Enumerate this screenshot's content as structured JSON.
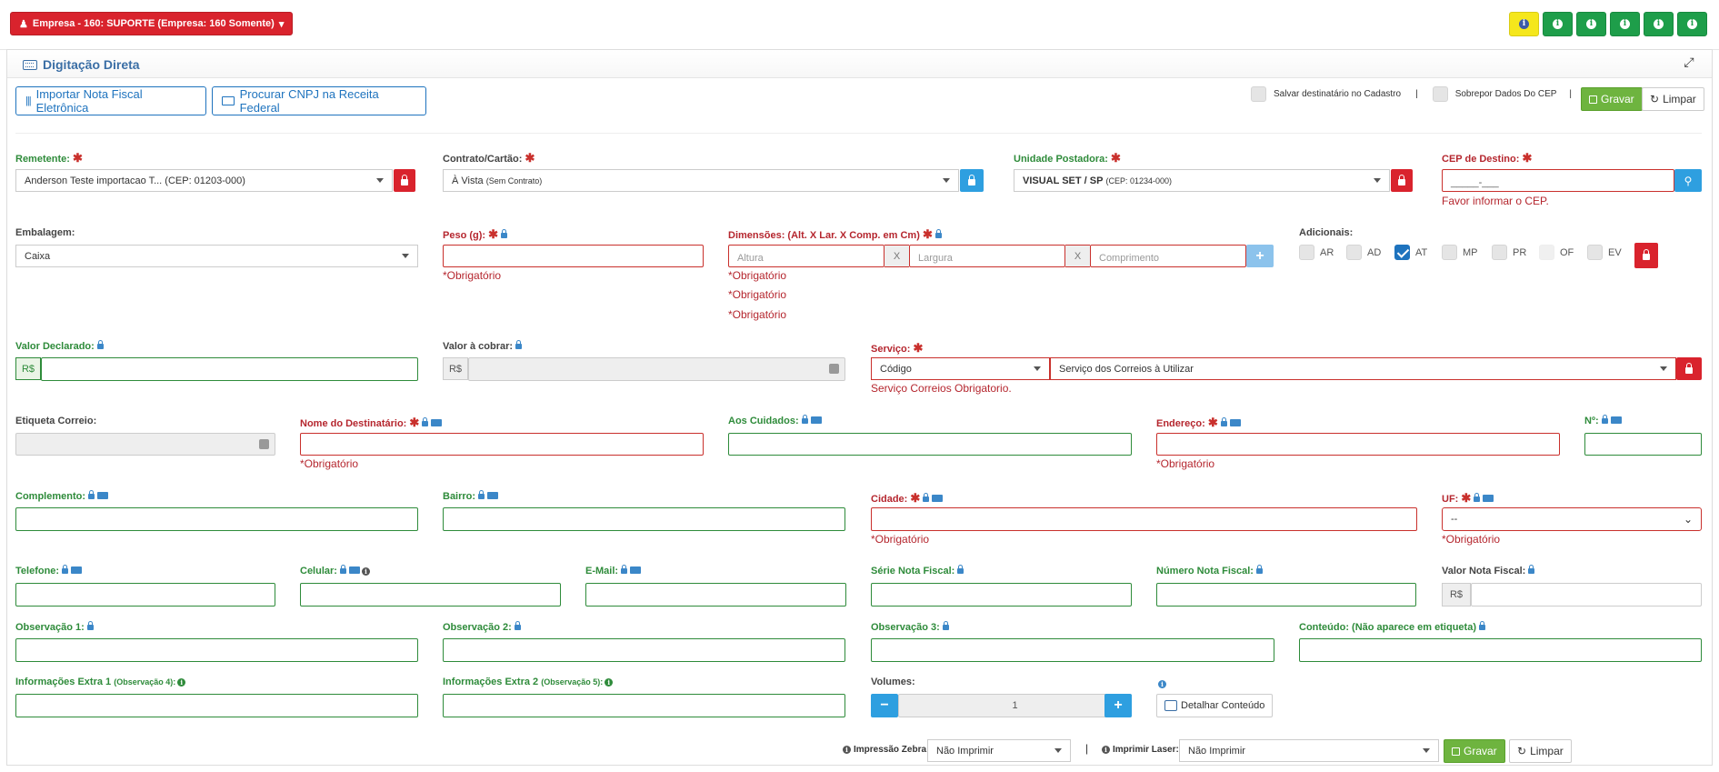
{
  "topbar": {
    "empresa": "Empresa - 160: SUPORTE (Empresa: 160 Somente)",
    "info_buttons": 6
  },
  "panel": {
    "title": "Digitação Direta"
  },
  "actions": {
    "importar": "Importar Nota Fiscal Eletrônica",
    "procurar": "Procurar CNPJ na Receita Federal",
    "salvar_dest": "Salvar destinatário no Cadastro",
    "sobrepor": "Sobrepor Dados Do CEP",
    "sep": "|",
    "gravar": "Gravar",
    "limpar": "Limpar"
  },
  "remetente": {
    "label": "Remetente:",
    "value": "Anderson Teste importacao T... (CEP: 01203-000)"
  },
  "contrato": {
    "label": "Contrato/Cartão:",
    "value": "À Vista",
    "value_small": "(Sem Contrato)"
  },
  "unidade": {
    "label": "Unidade Postadora:",
    "value": "VISUAL SET / SP",
    "value_small": "(CEP: 01234-000)"
  },
  "cep_destino": {
    "label": "CEP de Destino:",
    "placeholder": "_____-___",
    "error": "Favor informar o CEP."
  },
  "embalagem": {
    "label": "Embalagem:",
    "value": "Caixa"
  },
  "peso": {
    "label": "Peso (g):",
    "error": "*Obrigatório"
  },
  "dimensoes": {
    "label": "Dimensões: (Alt. X Lar. X Comp. em Cm)",
    "altura": "Altura",
    "largura": "Largura",
    "comprimento": "Comprimento",
    "x": "X",
    "errors": [
      "*Obrigatório",
      "*Obrigatório",
      "*Obrigatório"
    ]
  },
  "adicionais": {
    "label": "Adicionais:",
    "items": [
      {
        "label": "AR",
        "checked": false
      },
      {
        "label": "AD",
        "checked": false
      },
      {
        "label": "AT",
        "checked": true
      },
      {
        "label": "MP",
        "checked": false
      },
      {
        "label": "PR",
        "checked": false
      },
      {
        "label": "OF",
        "checked": false
      },
      {
        "label": "EV",
        "checked": false
      }
    ]
  },
  "valor_declarado": {
    "label": "Valor Declarado:",
    "prefix": "R$"
  },
  "valor_cobrar": {
    "label": "Valor à cobrar:",
    "prefix": "R$"
  },
  "servico": {
    "label": "Serviço:",
    "codigo": "Código",
    "placeholder": "Serviço dos Correios à Utilizar",
    "error": "Serviço Correios Obrigatorio."
  },
  "etiqueta": {
    "label": "Etiqueta Correio:"
  },
  "nome_dest": {
    "label": "Nome do Destinatário:",
    "error": "*Obrigatório"
  },
  "aos_cuidados": {
    "label": "Aos Cuidados:"
  },
  "endereco": {
    "label": "Endereço:",
    "error": "*Obrigatório"
  },
  "numero": {
    "label": "Nº:"
  },
  "complemento": {
    "label": "Complemento:"
  },
  "bairro": {
    "label": "Bairro:"
  },
  "cidade": {
    "label": "Cidade:",
    "error": "*Obrigatório"
  },
  "uf": {
    "label": "UF:",
    "value": "--",
    "error": "*Obrigatório"
  },
  "telefone": {
    "label": "Telefone:"
  },
  "celular": {
    "label": "Celular:"
  },
  "email": {
    "label": "E-Mail:"
  },
  "serie_nf": {
    "label": "Série Nota Fiscal:"
  },
  "numero_nf": {
    "label": "Número Nota Fiscal:"
  },
  "valor_nf": {
    "label": "Valor Nota Fiscal:",
    "prefix": "R$"
  },
  "obs1": {
    "label": "Observação 1:"
  },
  "obs2": {
    "label": "Observação 2:"
  },
  "obs3": {
    "label": "Observação 3:"
  },
  "conteudo": {
    "label": "Conteúdo: (Não aparece em etiqueta)"
  },
  "extra1": {
    "label": "Informações Extra 1",
    "small": "(Observação 4):"
  },
  "extra2": {
    "label": "Informações Extra 2",
    "small": "(Observação 5):"
  },
  "volumes": {
    "label": "Volumes:",
    "value": "1",
    "minus": "−",
    "plus": "+"
  },
  "detalhar": {
    "label": "Detalhar Conteúdo"
  },
  "footer": {
    "zebra_label": "Impressão Zebra:",
    "zebra_value": "Não Imprimir",
    "laser_label": "Imprimir Laser:",
    "laser_value": "Não Imprimir",
    "sep": "|",
    "gravar": "Gravar",
    "limpar": "Limpar"
  }
}
